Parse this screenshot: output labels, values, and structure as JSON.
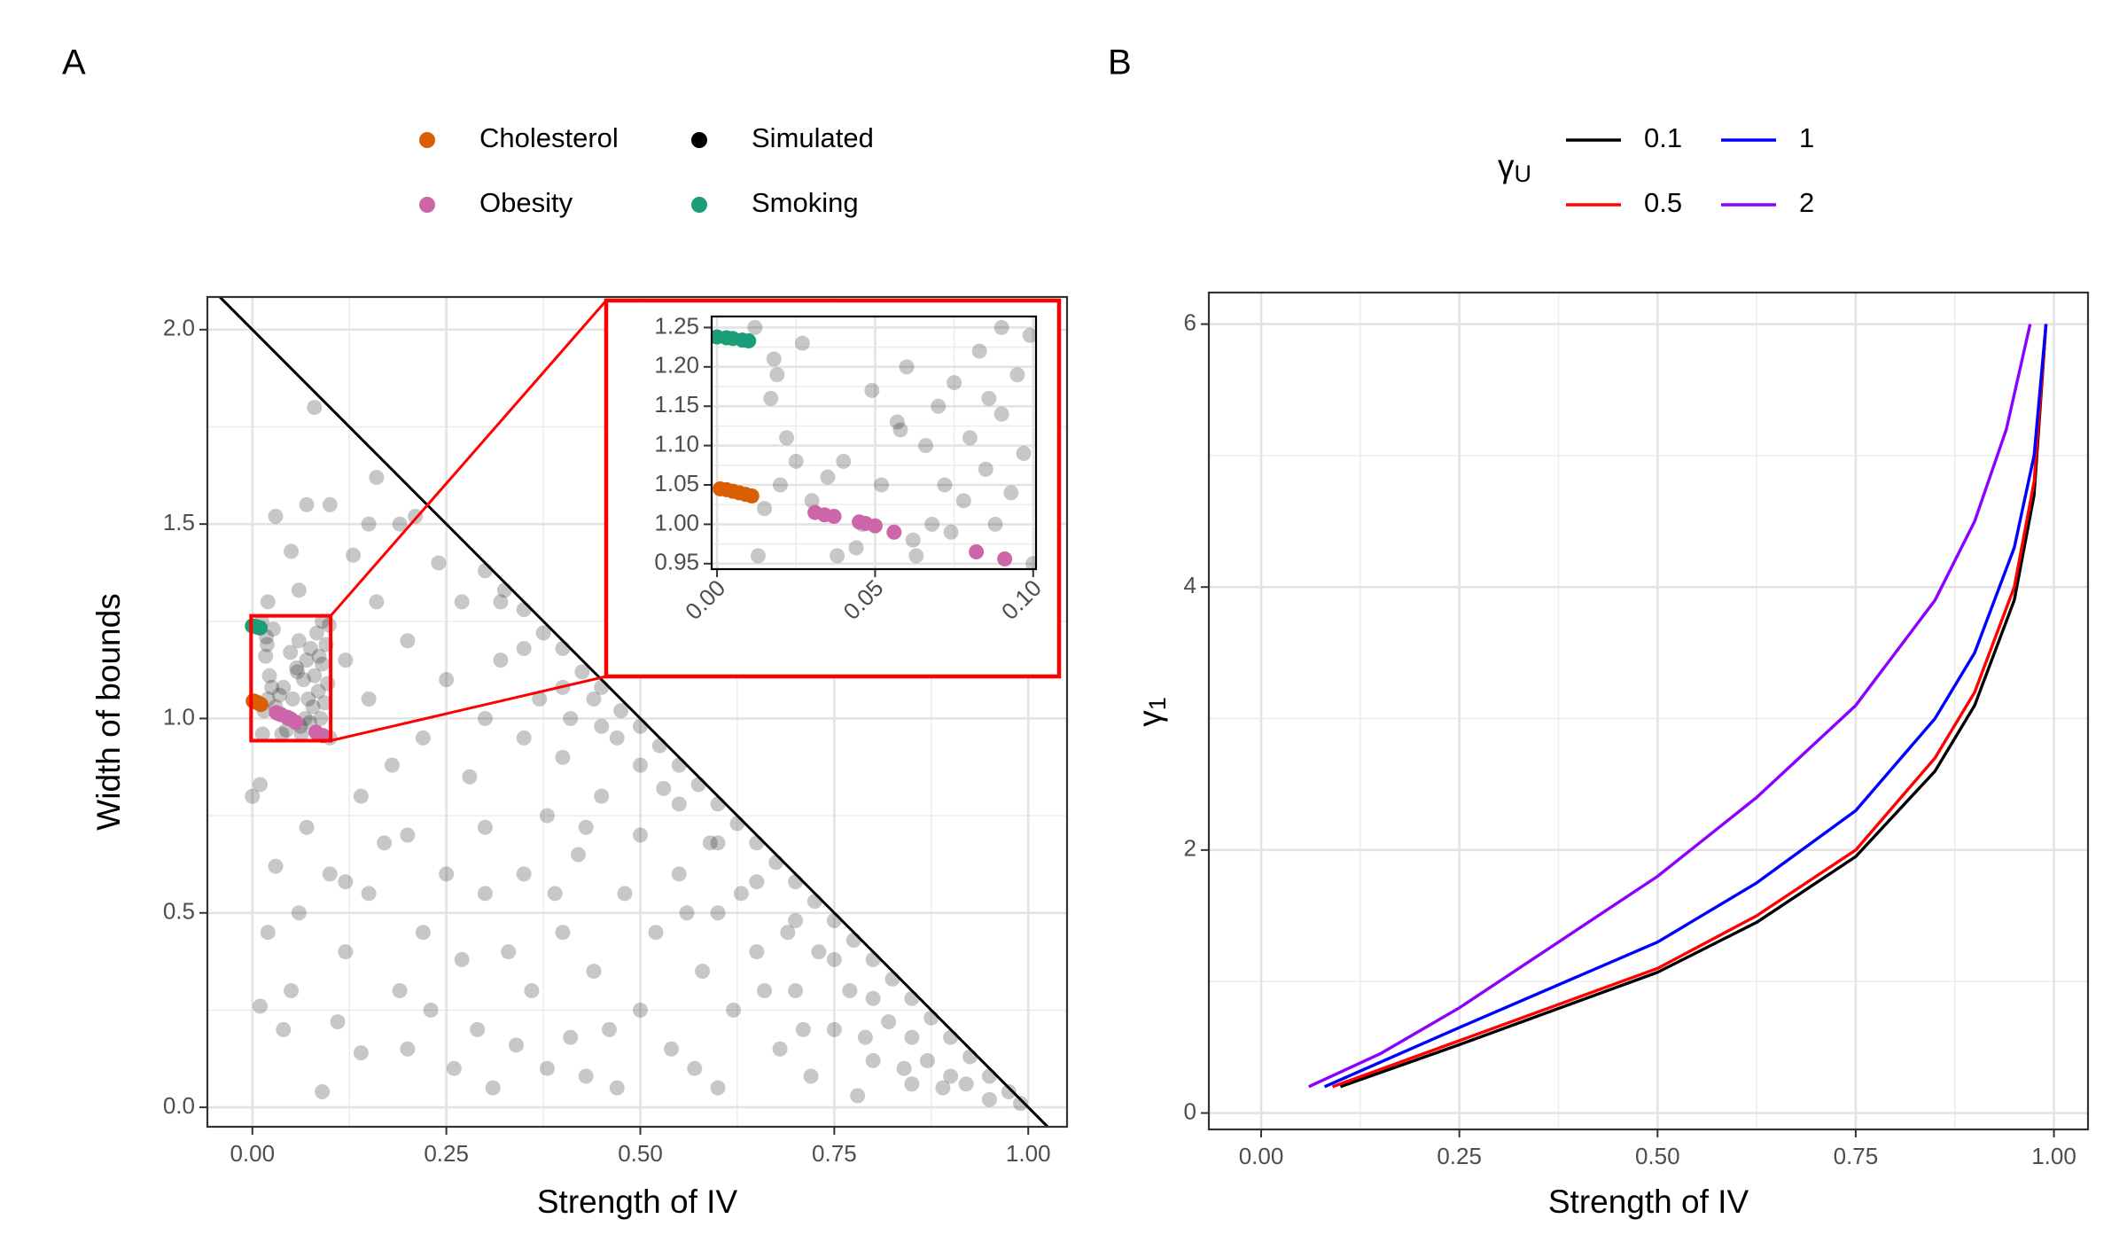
{
  "chart_data": [
    {
      "type": "scatter",
      "label": "A",
      "xlabel": "Strength of IV",
      "ylabel": "Width of bounds",
      "xlim": [
        -0.058,
        1.05
      ],
      "ylim": [
        -0.05,
        2.084
      ],
      "xticks": [
        {
          "value": 0,
          "label": "0.00"
        },
        0.25,
        {
          "value": 0.5,
          "label": "0.50"
        },
        0.75,
        {
          "value": 1,
          "label": "1.00"
        }
      ],
      "yticks": [
        {
          "value": 0,
          "label": "0.0"
        },
        0.5,
        {
          "value": 1,
          "label": "1.0"
        },
        1.5,
        {
          "value": 2,
          "label": "2.0"
        }
      ],
      "grid": true,
      "minor_grid": true,
      "reference_line": {
        "intercept": 2,
        "slope": -2
      },
      "series": [
        {
          "name": "Cholesterol",
          "color": "#d95f02",
          "alpha": 1,
          "x": [
            0.001,
            0.003,
            0.005,
            0.007,
            0.009,
            0.011
          ],
          "values": [
            1.045,
            1.044,
            1.042,
            1.04,
            1.038,
            1.036
          ]
        },
        {
          "name": "Obesity",
          "color": "#cc66a8",
          "alpha": 1,
          "x": [
            0.031,
            0.034,
            0.037,
            0.045,
            0.047,
            0.05,
            0.056,
            0.082,
            0.091
          ],
          "values": [
            1.015,
            1.012,
            1.01,
            1.003,
            1.001,
            0.998,
            0.99,
            0.965,
            0.956
          ]
        },
        {
          "name": "Simulated",
          "color": "#000000",
          "alpha": 0.22,
          "x": [
            0.012,
            0.018,
            0.019,
            0.017,
            0.027,
            0.025,
            0.022,
            0.02,
            0.015,
            0.013,
            0.03,
            0.035,
            0.04,
            0.038,
            0.044,
            0.049,
            0.052,
            0.058,
            0.06,
            0.062,
            0.066,
            0.068,
            0.07,
            0.072,
            0.075,
            0.078,
            0.08,
            0.083,
            0.085,
            0.088,
            0.09,
            0.093,
            0.095,
            0.097,
            0.099,
            0.063,
            0.046,
            0.057,
            0.074,
            0.086,
            0.3,
            0.325,
            0.35,
            0.375,
            0.4,
            0.425,
            0.45,
            0.475,
            0.5,
            0.525,
            0.55,
            0.575,
            0.6,
            0.625,
            0.65,
            0.675,
            0.7,
            0.725,
            0.75,
            0.775,
            0.8,
            0.825,
            0.85,
            0.875,
            0.9,
            0.925,
            0.95,
            0.975,
            0.99,
            0.35,
            0.4,
            0.45,
            0.5,
            0.55,
            0.6,
            0.65,
            0.7,
            0.75,
            0.8,
            0.85,
            0.9,
            0.95,
            0.2,
            0.25,
            0.3,
            0.28,
            0.35,
            0.4,
            0.38,
            0.45,
            0.5,
            0.42,
            0.55,
            0.48,
            0.6,
            0.52,
            0.65,
            0.58,
            0.7,
            0.62,
            0.75,
            0.68,
            0.8,
            0.72,
            0.85,
            0.78,
            0.22,
            0.18,
            0.15,
            0.12,
            0.1,
            0.14,
            0.2,
            0.25,
            0.3,
            0.33,
            0.36,
            0.4,
            0.44,
            0.46,
            0.5,
            0.54,
            0.57,
            0.6,
            0.3,
            0.32,
            0.27,
            0.24,
            0.16,
            0.13,
            0.09,
            0.06,
            0.05,
            0.08,
            0.1,
            0.19,
            0.03,
            0.02,
            0.01,
            0.0,
            0.03,
            0.02,
            0.06,
            0.05,
            0.01,
            0.04,
            0.1,
            0.12,
            0.15,
            0.11,
            0.14,
            0.19,
            0.2,
            0.23,
            0.26,
            0.29,
            0.31,
            0.34,
            0.38,
            0.41,
            0.43,
            0.47,
            0.09,
            0.17,
            0.07,
            0.12,
            0.22,
            0.27,
            0.35,
            0.39,
            0.43,
            0.47,
            0.53,
            0.56,
            0.59,
            0.63,
            0.66,
            0.69,
            0.71,
            0.73,
            0.77,
            0.79,
            0.82,
            0.84,
            0.87,
            0.89,
            0.92,
            0.16,
            0.21,
            0.15,
            0.07,
            0.32,
            0.37,
            0.41,
            0.44
          ],
          "values": [
            1.25,
            1.21,
            1.19,
            1.16,
            1.23,
            1.08,
            1.11,
            1.05,
            1.02,
            0.96,
            1.03,
            1.06,
            1.08,
            0.96,
            0.97,
            1.17,
            1.05,
            1.12,
            1.2,
            0.98,
            1.1,
            1.0,
            1.15,
            1.05,
            1.18,
            1.03,
            1.11,
            1.22,
            1.07,
            1.0,
            1.14,
            1.04,
            1.19,
            1.09,
            1.24,
            0.96,
            1.0,
            1.13,
            0.99,
            1.16,
            1.38,
            1.33,
            1.28,
            1.22,
            1.18,
            1.12,
            1.08,
            1.02,
            0.98,
            0.93,
            0.88,
            0.83,
            0.78,
            0.73,
            0.68,
            0.63,
            0.58,
            0.53,
            0.48,
            0.43,
            0.38,
            0.33,
            0.28,
            0.23,
            0.18,
            0.13,
            0.08,
            0.04,
            0.01,
            1.18,
            1.08,
            0.98,
            0.88,
            0.78,
            0.68,
            0.58,
            0.48,
            0.38,
            0.28,
            0.18,
            0.08,
            0.02,
            1.2,
            1.1,
            1.0,
            0.85,
            0.95,
            0.9,
            0.75,
            0.8,
            0.7,
            0.65,
            0.6,
            0.55,
            0.5,
            0.45,
            0.4,
            0.35,
            0.3,
            0.25,
            0.2,
            0.15,
            0.12,
            0.08,
            0.06,
            0.03,
            0.95,
            0.88,
            1.05,
            1.15,
            0.95,
            0.8,
            0.7,
            0.6,
            0.55,
            0.4,
            0.3,
            0.45,
            0.35,
            0.2,
            0.25,
            0.15,
            0.1,
            0.05,
            0.72,
            1.15,
            1.3,
            1.4,
            1.3,
            1.42,
            1.25,
            1.33,
            1.43,
            1.8,
            1.55,
            1.5,
            1.52,
            1.3,
            0.83,
            0.8,
            0.62,
            0.45,
            0.5,
            0.3,
            0.26,
            0.2,
            0.6,
            0.4,
            0.55,
            0.22,
            0.14,
            0.3,
            0.15,
            0.25,
            0.1,
            0.2,
            0.05,
            0.16,
            0.1,
            0.18,
            0.08,
            0.05,
            0.04,
            0.68,
            0.72,
            0.58,
            0.45,
            0.38,
            0.6,
            0.55,
            0.72,
            0.95,
            0.82,
            0.5,
            0.68,
            0.55,
            0.3,
            0.45,
            0.2,
            0.4,
            0.3,
            0.18,
            0.22,
            0.1,
            0.12,
            0.05,
            0.06,
            1.62,
            1.52,
            1.5,
            1.55,
            1.3,
            1.05,
            1.0,
            1.05
          ]
        },
        {
          "name": "Smoking",
          "color": "#1b9e77",
          "alpha": 1,
          "x": [
            0.0,
            0.003,
            0.005,
            0.008,
            0.01
          ],
          "values": [
            1.238,
            1.237,
            1.236,
            1.234,
            1.233
          ]
        }
      ],
      "inset": {
        "xlim": [
          -0.0017,
          0.1009
        ],
        "ylim": [
          0.943,
          1.264
        ],
        "xticks": [
          {
            "value": 0,
            "label": "0.00"
          },
          0.05,
          {
            "value": 0.1,
            "label": "0.10"
          }
        ],
        "yticks": [
          0.95,
          {
            "value": 1,
            "label": "1.00"
          },
          1.05,
          {
            "value": 1.1,
            "label": "1.10"
          },
          1.15,
          {
            "value": 1.2,
            "label": "1.20"
          },
          1.25
        ],
        "grid": true,
        "minor_grid": true,
        "zoom_color": "#ff0000"
      }
    },
    {
      "type": "line",
      "label": "B",
      "xlabel": "Strength of IV",
      "ylabel": {
        "symbol": "γ",
        "subscript": "1"
      },
      "legend_title": {
        "symbol": "γ",
        "subscript": "U"
      },
      "xlim": [
        -0.066,
        1.043
      ],
      "ylim": [
        -0.125,
        6.24
      ],
      "xticks": [
        {
          "value": 0,
          "label": "0.00"
        },
        0.25,
        {
          "value": 0.5,
          "label": "0.50"
        },
        0.75,
        {
          "value": 1,
          "label": "1.00"
        }
      ],
      "yticks": [
        0,
        2,
        4,
        6
      ],
      "grid": true,
      "minor_grid": true,
      "series": [
        {
          "name": "0.1",
          "color": "#000000",
          "x": [
            0.1,
            0.25,
            0.5,
            0.625,
            0.75,
            0.85,
            0.9,
            0.95,
            0.975,
            0.99
          ],
          "values": [
            0.2,
            0.52,
            1.07,
            1.45,
            1.95,
            2.6,
            3.1,
            3.9,
            4.7,
            6
          ]
        },
        {
          "name": "0.5",
          "color": "#ff0000",
          "x": [
            0.09,
            0.25,
            0.5,
            0.625,
            0.75,
            0.85,
            0.9,
            0.95,
            0.975,
            0.99
          ],
          "values": [
            0.2,
            0.55,
            1.1,
            1.5,
            2.0,
            2.7,
            3.2,
            4.0,
            4.8,
            6
          ]
        },
        {
          "name": "1",
          "color": "#0000ff",
          "x": [
            0.08,
            0.25,
            0.5,
            0.625,
            0.75,
            0.85,
            0.9,
            0.95,
            0.975,
            0.99
          ],
          "values": [
            0.2,
            0.65,
            1.3,
            1.75,
            2.3,
            3.0,
            3.5,
            4.3,
            5.0,
            6
          ]
        },
        {
          "name": "2",
          "color": "#8b00ff",
          "x": [
            0.06,
            0.15,
            0.25,
            0.375,
            0.5,
            0.625,
            0.75,
            0.85,
            0.9,
            0.94,
            0.97
          ],
          "values": [
            0.2,
            0.45,
            0.8,
            1.3,
            1.8,
            2.4,
            3.1,
            3.9,
            4.5,
            5.2,
            6
          ]
        }
      ]
    }
  ]
}
